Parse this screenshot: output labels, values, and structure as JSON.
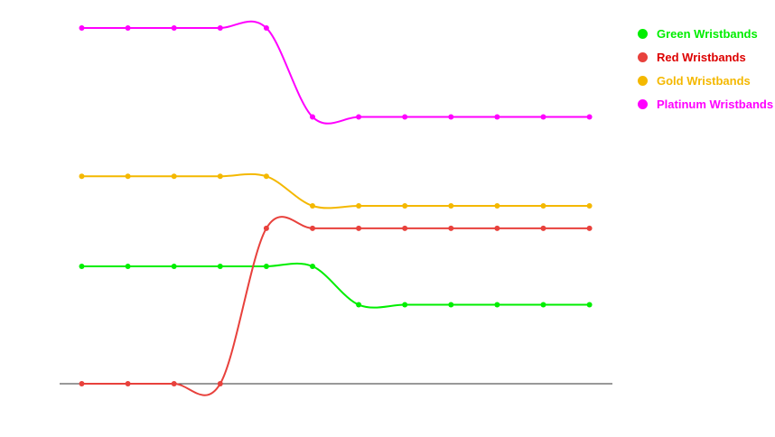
{
  "chart_data": {
    "type": "line",
    "title": "",
    "xlabel": "",
    "ylabel": "",
    "x": [
      0,
      1,
      2,
      3,
      4,
      5,
      6,
      7,
      8,
      9,
      10,
      11
    ],
    "ylim": [
      0,
      100
    ],
    "grid": false,
    "legend_position": "top-right",
    "series": [
      {
        "name": "Green Wristbands",
        "color": "#00ee00",
        "values": [
          33,
          33,
          33,
          33,
          33,
          33,
          22.2,
          22.2,
          22.2,
          22.2,
          22.2,
          22.2
        ]
      },
      {
        "name": "Red Wristbands",
        "color": "#e8413c",
        "values": [
          0,
          0,
          0,
          0,
          43.7,
          43.7,
          43.7,
          43.7,
          43.7,
          43.7,
          43.7,
          43.7
        ]
      },
      {
        "name": "Gold Wristbands",
        "color": "#f4b800",
        "values": [
          58.3,
          58.3,
          58.3,
          58.3,
          58.3,
          50,
          50,
          50,
          50,
          50,
          50,
          50
        ]
      },
      {
        "name": "Platinum Wristbands",
        "color": "#ff00ff",
        "values": [
          100,
          100,
          100,
          100,
          100,
          75,
          75,
          75,
          75,
          75,
          75,
          75
        ]
      }
    ]
  }
}
